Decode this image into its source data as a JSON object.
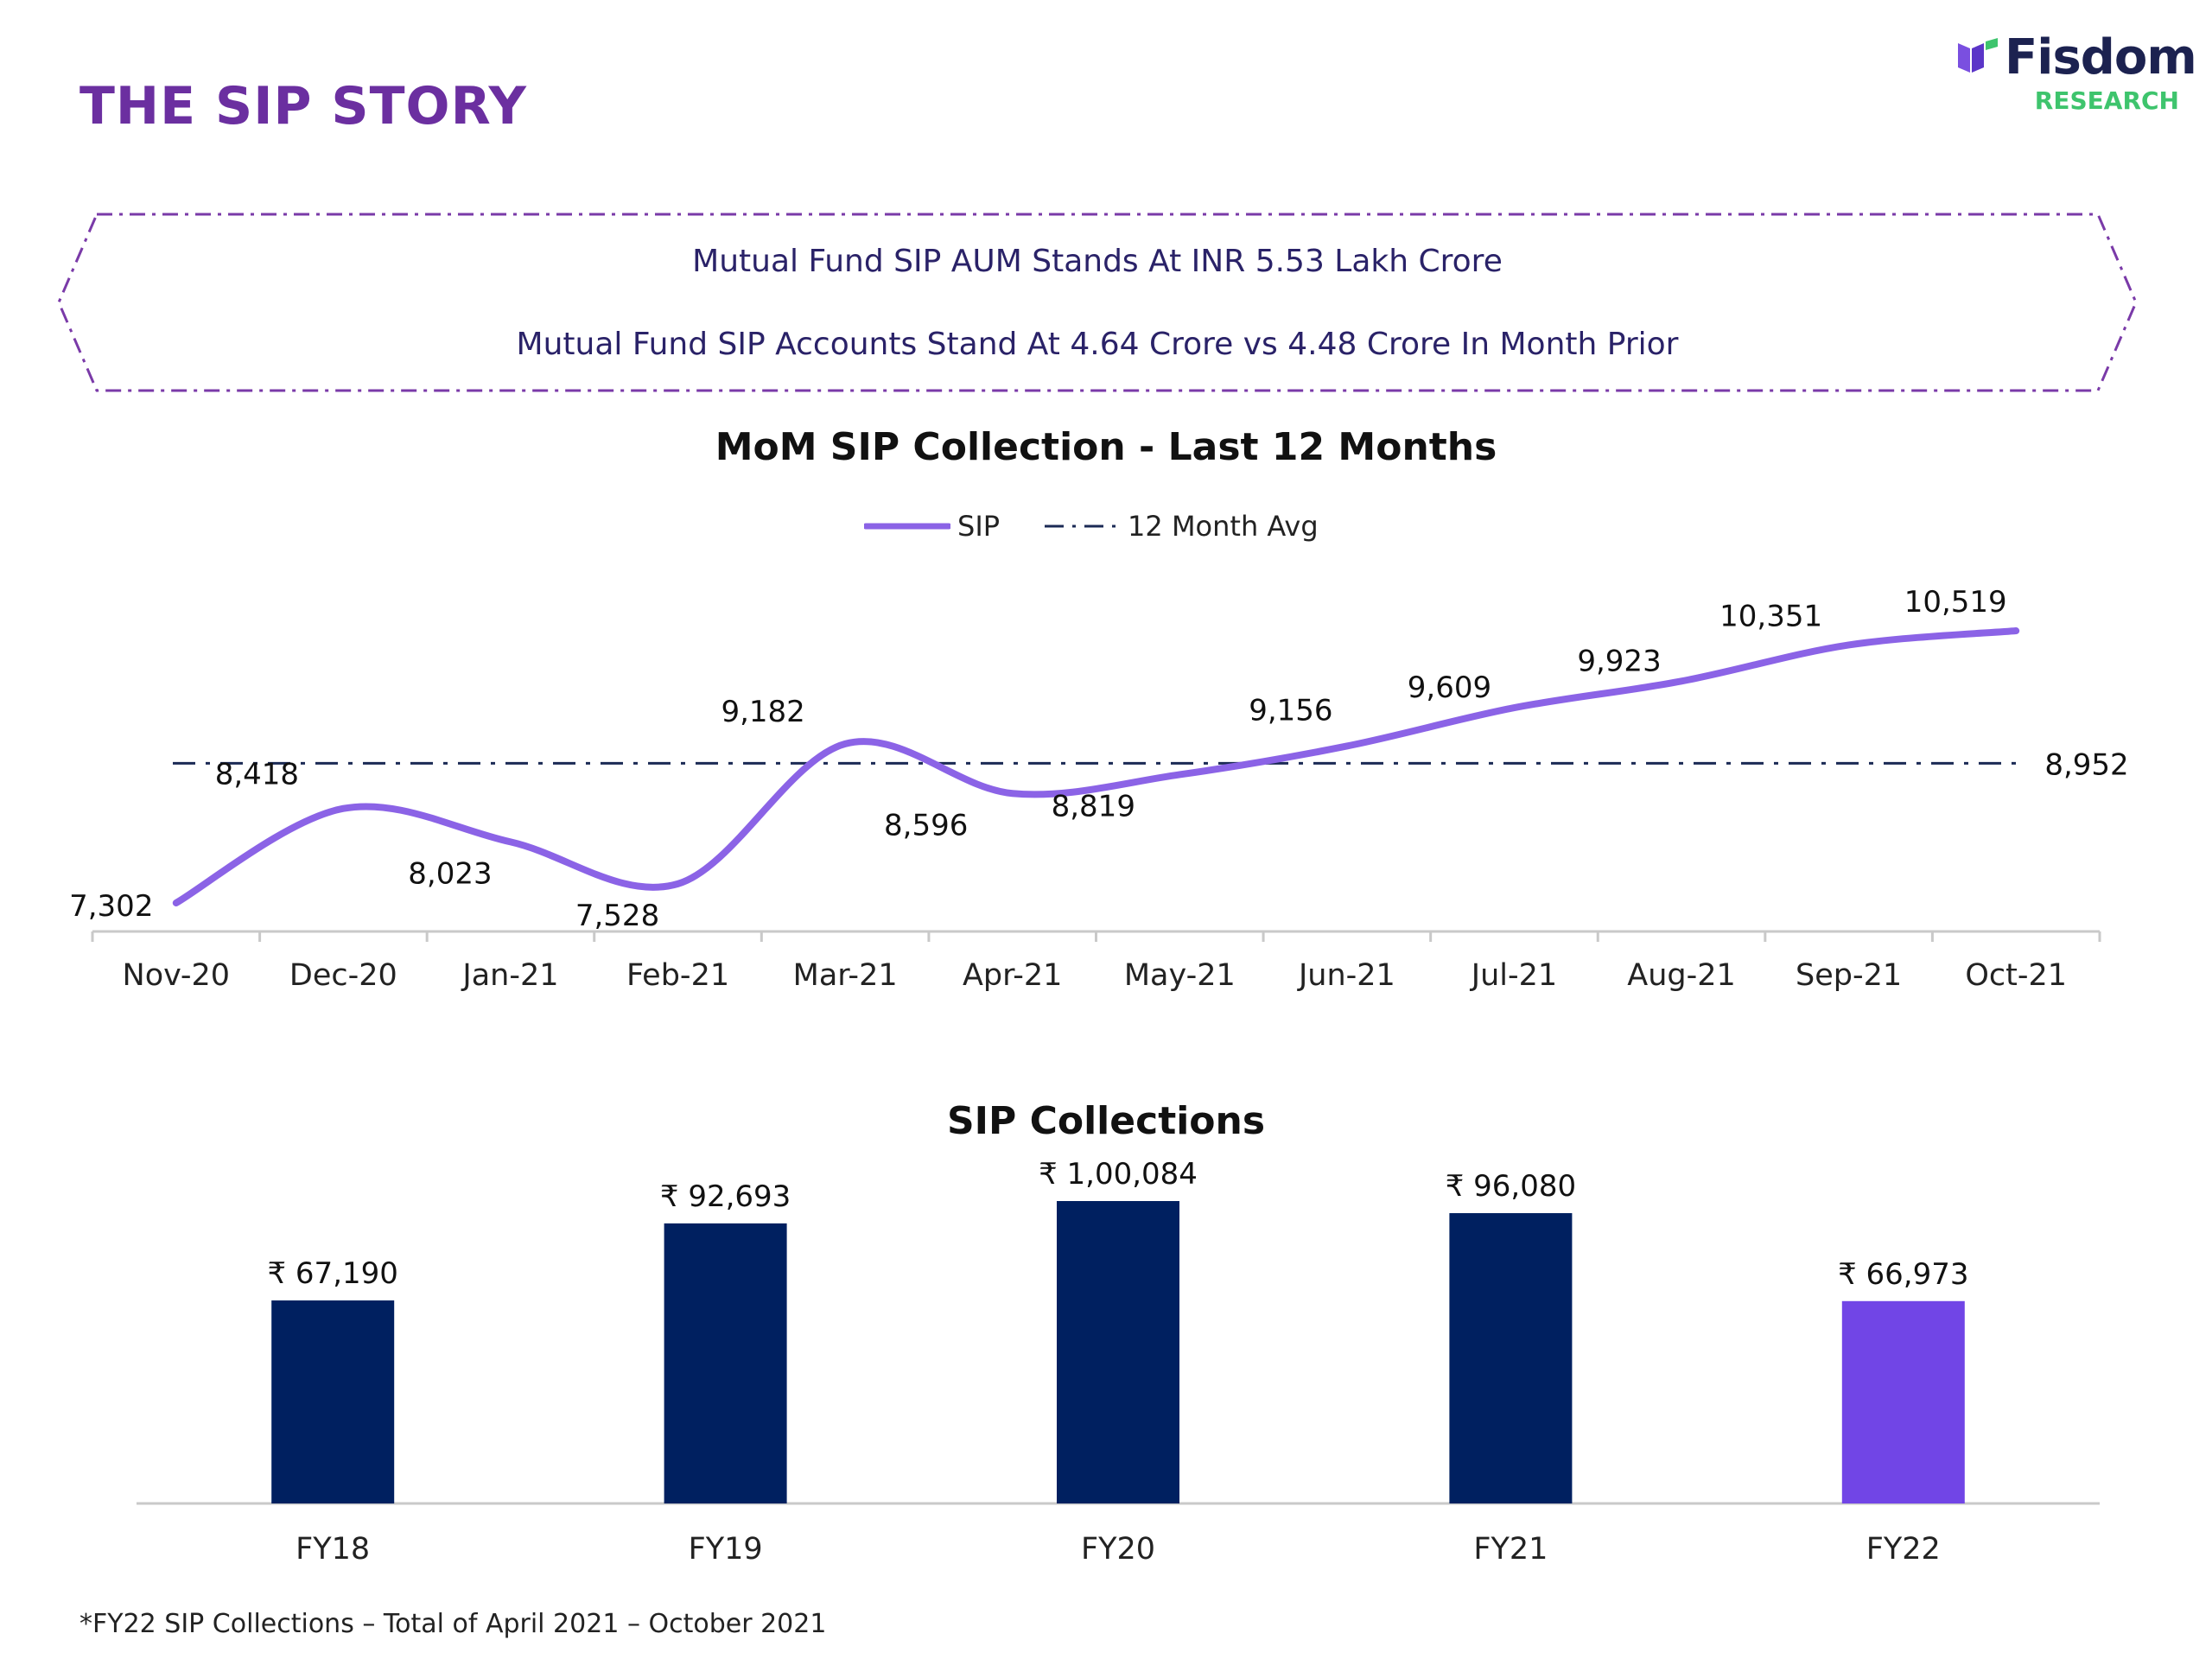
{
  "header": {
    "title": "THE SIP STORY",
    "brand": "Fisdom",
    "brand_sub": "RESEARCH",
    "brand_color": "#1c2250",
    "brand_sub_color": "#3ec46d",
    "title_color": "#6b2fa0"
  },
  "banner": {
    "line1": "Mutual Fund SIP AUM Stands At INR 5.53 Lakh Crore",
    "line2": "Mutual Fund SIP Accounts Stand At 4.64 Crore vs 4.48 Crore In Month Prior"
  },
  "footnote": "*FY22 SIP Collections – Total of April 2021 – October 2021",
  "chart_data": [
    {
      "type": "line",
      "title": "MoM SIP Collection - Last 12 Months",
      "categories": [
        "Nov-20",
        "Dec-20",
        "Jan-21",
        "Feb-21",
        "Mar-21",
        "Apr-21",
        "May-21",
        "Jun-21",
        "Jul-21",
        "Aug-21",
        "Sep-21",
        "Oct-21"
      ],
      "series": [
        {
          "name": "SIP",
          "color": "#8b63e6",
          "values": [
            7302,
            8418,
            8023,
            7528,
            9182,
            8596,
            8819,
            9156,
            9609,
            9923,
            10351,
            10519
          ],
          "labels": [
            "7,302",
            "8,418",
            "8,023",
            "7,528",
            "9,182",
            "8,596",
            "8,819",
            "9,156",
            "9,609",
            "9,923",
            "10,351",
            "10,519"
          ]
        },
        {
          "name": "12 Month Avg",
          "color": "#1b2a55",
          "value": 8952,
          "label": "8,952"
        }
      ],
      "legend": "top-center",
      "grid": false
    },
    {
      "type": "bar",
      "title": "SIP Collections",
      "categories": [
        "FY18",
        "FY19",
        "FY20",
        "FY21",
        "FY22"
      ],
      "values": [
        67190,
        92693,
        100084,
        96080,
        66973
      ],
      "labels": [
        "₹ 67,190",
        "₹ 92,693",
        "₹ 1,00,084",
        "₹ 96,080",
        "₹ 66,973"
      ],
      "colors": [
        "#002060",
        "#002060",
        "#002060",
        "#002060",
        "#7145e6"
      ],
      "grid": false
    }
  ]
}
